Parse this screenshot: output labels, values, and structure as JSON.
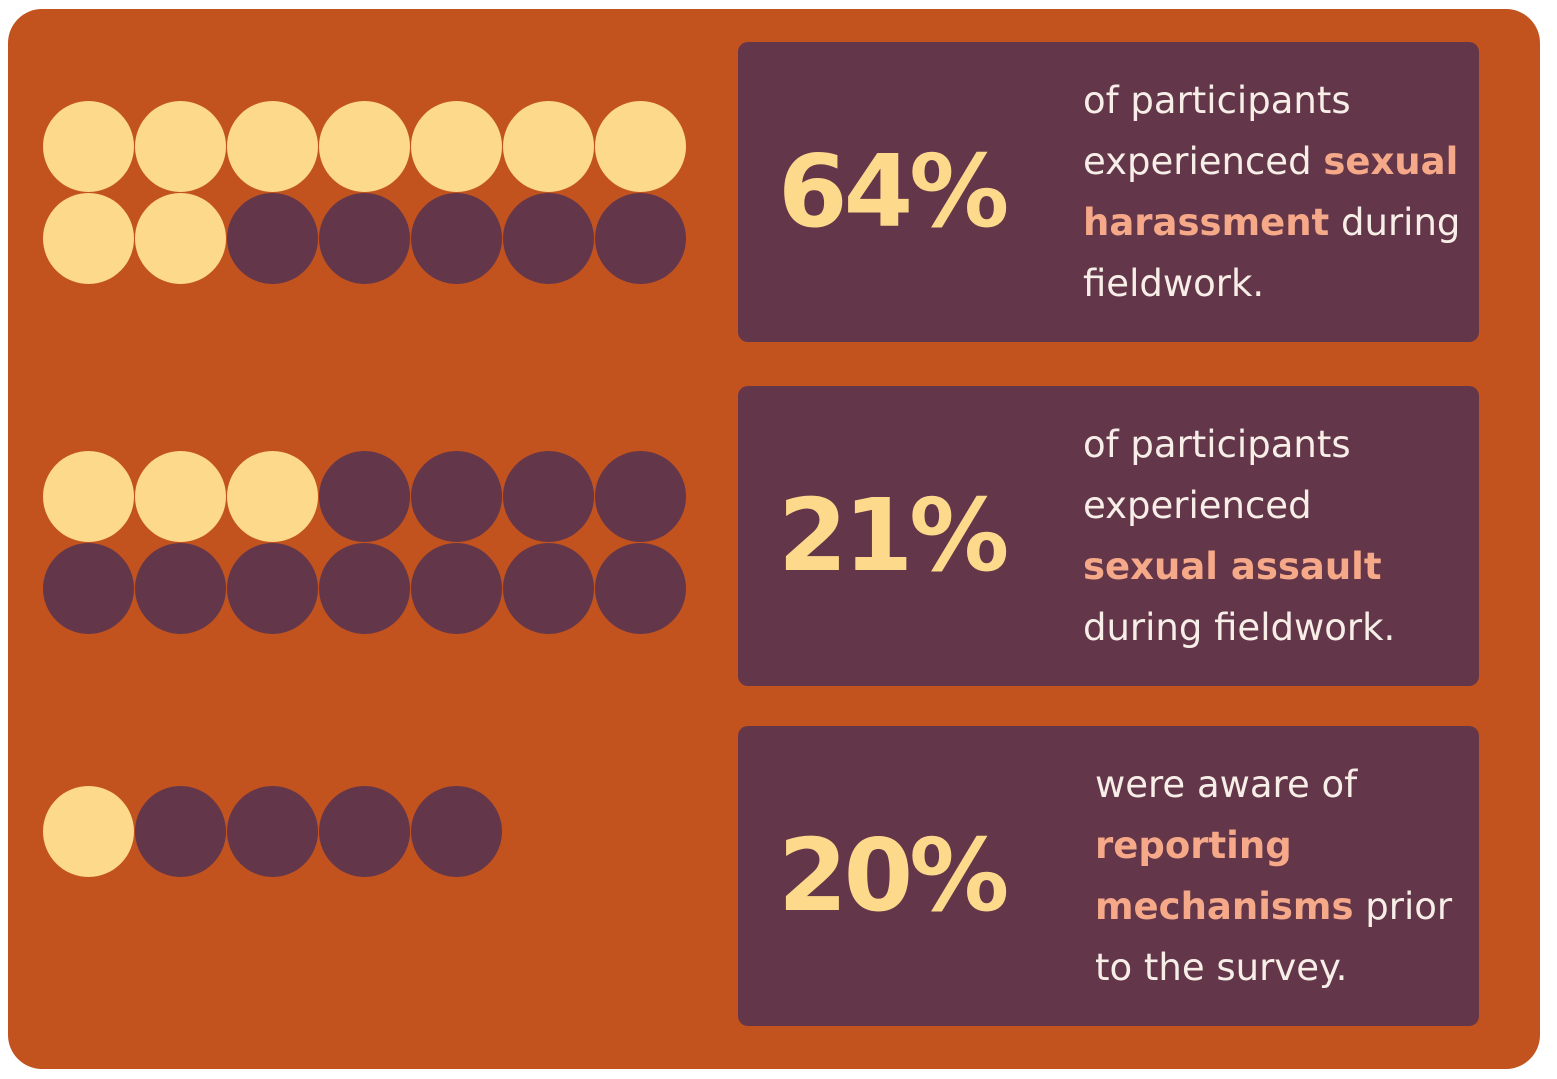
{
  "colors": {
    "background": "#c2531f",
    "panel": "#633649",
    "dot_filled": "#fdd98c",
    "dot_empty": "#633649",
    "percent_text": "#fdd98c",
    "body_text": "#f7eee8",
    "highlight_text": "#f6a988"
  },
  "chart_data": [
    {
      "type": "pictogram",
      "filled_dots": 9,
      "total_dots": 14,
      "value_label": "64%",
      "text": {
        "pre": "of participants experienced ",
        "highlight": "sexual harassment",
        "post": " during fieldwork."
      }
    },
    {
      "type": "pictogram",
      "filled_dots": 3,
      "total_dots": 14,
      "value_label": "21%",
      "text": {
        "pre": "of participants experienced ",
        "highlight": "sexual assault",
        "post": " during fieldwork."
      }
    },
    {
      "type": "pictogram",
      "filled_dots": 1,
      "total_dots": 5,
      "value_label": "20%",
      "text": {
        "pre": "were aware of ",
        "highlight": "reporting mechanisms",
        "post": " prior to the survey."
      }
    }
  ]
}
